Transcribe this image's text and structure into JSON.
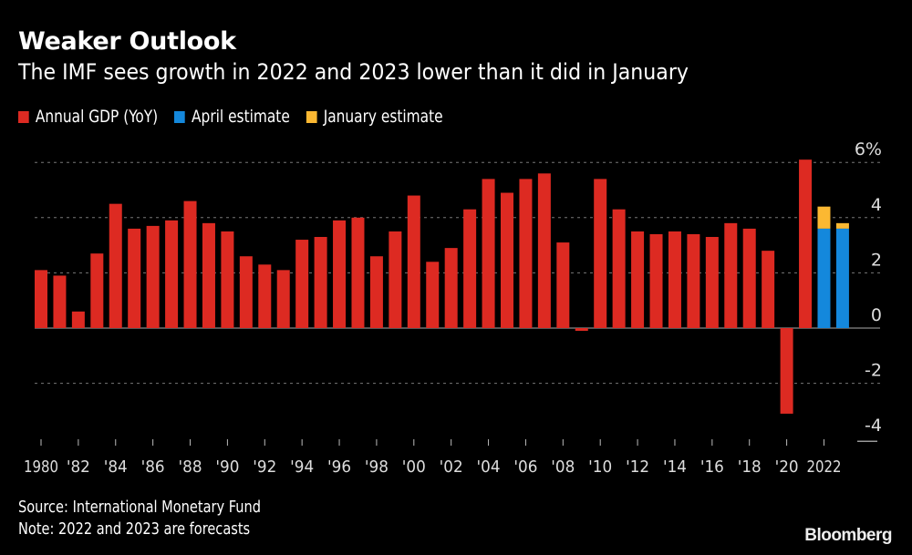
{
  "chart_data": {
    "type": "bar",
    "title": "Weaker Outlook",
    "subtitle": "The IMF sees growth in 2022 and 2023 lower than it did in January",
    "legend": [
      {
        "name": "Annual GDP (YoY)",
        "color": "#dd2a22"
      },
      {
        "name": "April estimate",
        "color": "#1488dc"
      },
      {
        "name": "January estimate",
        "color": "#fbb832"
      }
    ],
    "legend_placement": "top-left",
    "years": [
      1980,
      1981,
      1982,
      1983,
      1984,
      1985,
      1986,
      1987,
      1988,
      1989,
      1990,
      1991,
      1992,
      1993,
      1994,
      1995,
      1996,
      1997,
      1998,
      1999,
      2000,
      2001,
      2002,
      2003,
      2004,
      2005,
      2006,
      2007,
      2008,
      2009,
      2010,
      2011,
      2012,
      2013,
      2014,
      2015,
      2016,
      2017,
      2018,
      2019,
      2020,
      2021
    ],
    "annual_gdp": [
      2.1,
      1.9,
      0.6,
      2.7,
      4.5,
      3.6,
      3.7,
      3.9,
      4.6,
      3.8,
      3.5,
      2.6,
      2.3,
      2.1,
      3.2,
      3.3,
      3.9,
      4.0,
      2.6,
      3.5,
      4.8,
      2.4,
      2.9,
      4.3,
      5.4,
      4.9,
      5.4,
      5.6,
      3.1,
      -0.1,
      5.4,
      4.3,
      3.5,
      3.4,
      3.5,
      3.4,
      3.3,
      3.8,
      3.6,
      2.8,
      -3.1,
      6.1
    ],
    "forecasts": [
      {
        "year": 2022,
        "april": 3.6,
        "january": 4.4
      },
      {
        "year": 2023,
        "april": 3.6,
        "january": 3.8
      }
    ],
    "x_tick_labels": [
      "1980",
      "'82",
      "'84",
      "'86",
      "'88",
      "'90",
      "'92",
      "'94",
      "'96",
      "'98",
      "'00",
      "'02",
      "'04",
      "'06",
      "'08",
      "'10",
      "'12",
      "'14",
      "'16",
      "'18",
      "'20",
      "2022"
    ],
    "y_ticks": [
      6,
      4,
      2,
      0,
      -2,
      -4
    ],
    "y_tick_labels": [
      "6%",
      "4",
      "2",
      "0",
      "-2",
      "-4"
    ],
    "ylim": [
      -4,
      6
    ],
    "grid": true,
    "y_axis_position": "right"
  },
  "footer": {
    "source": "Source: International Monetary Fund",
    "note": "Note: 2022 and 2023 are forecasts",
    "brand": "Bloomberg"
  }
}
